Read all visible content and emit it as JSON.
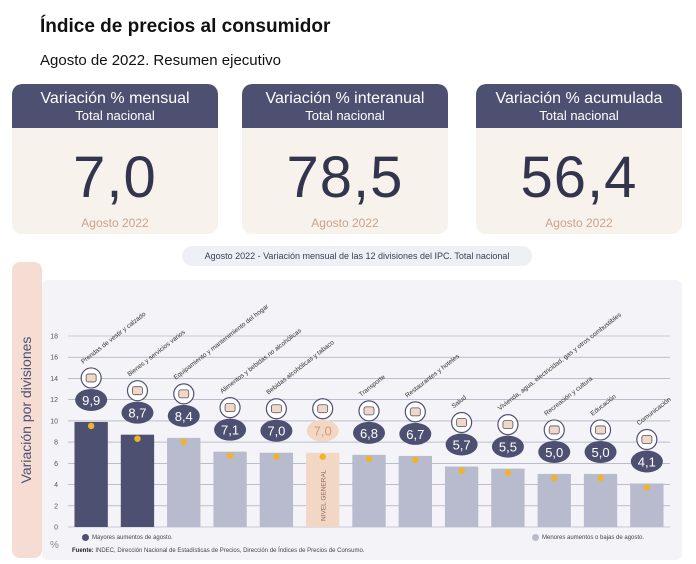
{
  "header": {
    "title": "Índice de precios al consumidor",
    "subtitle": "Agosto de 2022. Resumen ejecutivo"
  },
  "cards": [
    {
      "title": "Variación % mensual",
      "subtitle": "Total nacional",
      "value": "7,0",
      "footer": "Agosto 2022"
    },
    {
      "title": "Variación % interanual",
      "subtitle": "Total nacional",
      "value": "78,5",
      "footer": "Agosto 2022"
    },
    {
      "title": "Variación % acumulada",
      "subtitle": "Total nacional",
      "value": "56,4",
      "footer": "Agosto 2022"
    }
  ],
  "colors": {
    "header_bg": "#4e5072",
    "dark_bar": "#4e5072",
    "light_bar": "#b7bbcd",
    "general_bar": "#f3d7c5",
    "marker": "#f0b429",
    "accent_text": "#c8a48a"
  },
  "chart_data": {
    "type": "bar",
    "title": "Agosto 2022 - Variación mensual de las 12 divisiones del IPC. Total nacional",
    "ylabel": "Variación por divisiones",
    "yunit": "%",
    "ylim": [
      0,
      18
    ],
    "yticks": [
      0,
      2,
      4,
      6,
      8,
      10,
      12,
      14,
      16,
      18
    ],
    "grid": true,
    "categories": [
      "Prendas de vestir y calzado",
      "Bienes y servicios varios",
      "Equipamiento y mantenimiento del hogar",
      "Alimentos y bebidas no alcohólicas",
      "Bebidas alcohólicas y tabaco",
      "NIVEL GENERAL",
      "Transporte",
      "Restaurantes y hoteles",
      "Salud",
      "Vivienda, agua, electricidad, gas y otros combustibles",
      "Recreación y cultura",
      "Educación",
      "Comunicación"
    ],
    "values": [
      9.9,
      8.7,
      8.4,
      7.1,
      7.0,
      7.0,
      6.8,
      6.7,
      5.7,
      5.5,
      5.0,
      5.0,
      4.1
    ],
    "value_labels": [
      "9,9",
      "8,7",
      "8,4",
      "7,1",
      "7,0",
      "7,0",
      "6,8",
      "6,7",
      "5,7",
      "5,5",
      "5,0",
      "5,0",
      "4,1"
    ],
    "groups": [
      "mayor",
      "mayor",
      "menor",
      "menor",
      "menor",
      "general",
      "menor",
      "menor",
      "menor",
      "menor",
      "menor",
      "menor",
      "menor"
    ],
    "icons": [
      "clothing-icon",
      "razor-icon",
      "appliance-icon",
      "food-basket-icon",
      "bottles-icon",
      "general-basket-icon",
      "car-icon",
      "restaurant-icon",
      "health-cross-icon",
      "lightbulb-icon",
      "recreation-icon",
      "book-icon",
      "phone-icon"
    ],
    "category_label_general": "NIVEL GENERAL",
    "legend": {
      "left": "Mayores aumentos de agosto.",
      "right": "Menores aumentos o bajas de agosto."
    }
  },
  "source": {
    "label": "Fuente:",
    "text": "INDEC, Dirección Nacional de Estadísticas de Precios, Dirección de Índices de Precios de Consumo."
  }
}
